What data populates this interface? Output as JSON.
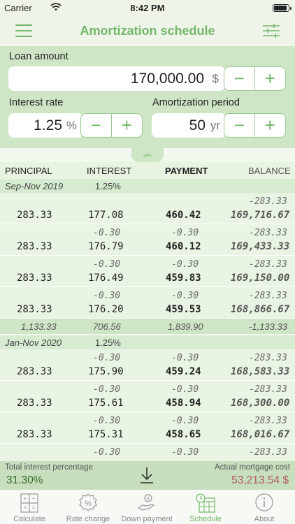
{
  "status_bar": {
    "carrier": "Carrier",
    "time": "8:42 PM",
    "battery_level": 0.95
  },
  "nav": {
    "title": "Amortization schedule"
  },
  "inputs": {
    "loan_amount": {
      "label": "Loan amount",
      "value": "170,000.00",
      "unit": "$"
    },
    "interest_rate": {
      "label": "Interest rate",
      "value": "1.25",
      "unit": "%"
    },
    "amortization_period": {
      "label": "Amortization period",
      "value": "50",
      "unit": "yr"
    },
    "stepper": {
      "minus": "−",
      "plus": "+"
    }
  },
  "collapse": {
    "symbol": "︽"
  },
  "table": {
    "headers": {
      "principal": "PRINCIPAL",
      "interest": "INTEREST",
      "payment": "PAYMENT",
      "balance": "BALANCE"
    },
    "groups": [
      {
        "period": "Sep-Nov 2019",
        "rate": "1.25%"
      },
      {
        "period": "Jan-Nov 2020",
        "rate": "1.25%"
      }
    ],
    "rows": [
      {
        "d_interest": "",
        "d_payment": "",
        "d_balance": "-283.33",
        "principal": "283.33",
        "interest": "177.08",
        "payment": "460.42",
        "balance": "169,716.67"
      },
      {
        "d_interest": "-0.30",
        "d_payment": "-0.30",
        "d_balance": "-283.33",
        "principal": "283.33",
        "interest": "176.79",
        "payment": "460.12",
        "balance": "169,433.33"
      },
      {
        "d_interest": "-0.30",
        "d_payment": "-0.30",
        "d_balance": "-283.33",
        "principal": "283.33",
        "interest": "176.49",
        "payment": "459.83",
        "balance": "169,150.00"
      },
      {
        "d_interest": "-0.30",
        "d_payment": "-0.30",
        "d_balance": "-283.33",
        "principal": "283.33",
        "interest": "176.20",
        "payment": "459.53",
        "balance": "168,866.67"
      },
      {
        "d_interest": "-0.30",
        "d_payment": "-0.30",
        "d_balance": "-283.33",
        "principal": "283.33",
        "interest": "175.90",
        "payment": "459.24",
        "balance": "168,583.33"
      },
      {
        "d_interest": "-0.30",
        "d_payment": "-0.30",
        "d_balance": "-283.33",
        "principal": "283.33",
        "interest": "175.61",
        "payment": "458.94",
        "balance": "168,300.00"
      },
      {
        "d_interest": "-0.30",
        "d_payment": "-0.30",
        "d_balance": "-283.33",
        "principal": "283.33",
        "interest": "175.31",
        "payment": "458.65",
        "balance": "168,016.67"
      },
      {
        "d_interest": "-0.30",
        "d_payment": "-0.30",
        "d_balance": "-283.33",
        "principal": "",
        "interest": "",
        "payment": "",
        "balance": ""
      }
    ],
    "subtotal": {
      "principal": "1,133.33",
      "interest": "706.56",
      "payment": "1,839.90",
      "balance": "-1,133.33"
    }
  },
  "footer": {
    "total_interest_label": "Total interest percentage",
    "total_interest_value": "31.30%",
    "mortgage_cost_label": "Actual mortgage cost",
    "mortgage_cost_value": "53,213.54 $",
    "mortgage_cost_color": "#b05a5a"
  },
  "tabs": [
    {
      "label": "Calculate",
      "icon": "calculator-icon"
    },
    {
      "label": "Rate change",
      "icon": "percent-icon"
    },
    {
      "label": "Down payment",
      "icon": "hand-money-icon"
    },
    {
      "label": "Schedule",
      "icon": "calendar-clock-icon",
      "active": true
    },
    {
      "label": "About",
      "icon": "info-icon"
    }
  ],
  "colors": {
    "accent": "#73b86a",
    "panel": "#cfe6c6",
    "row": "#e9f4e4"
  }
}
